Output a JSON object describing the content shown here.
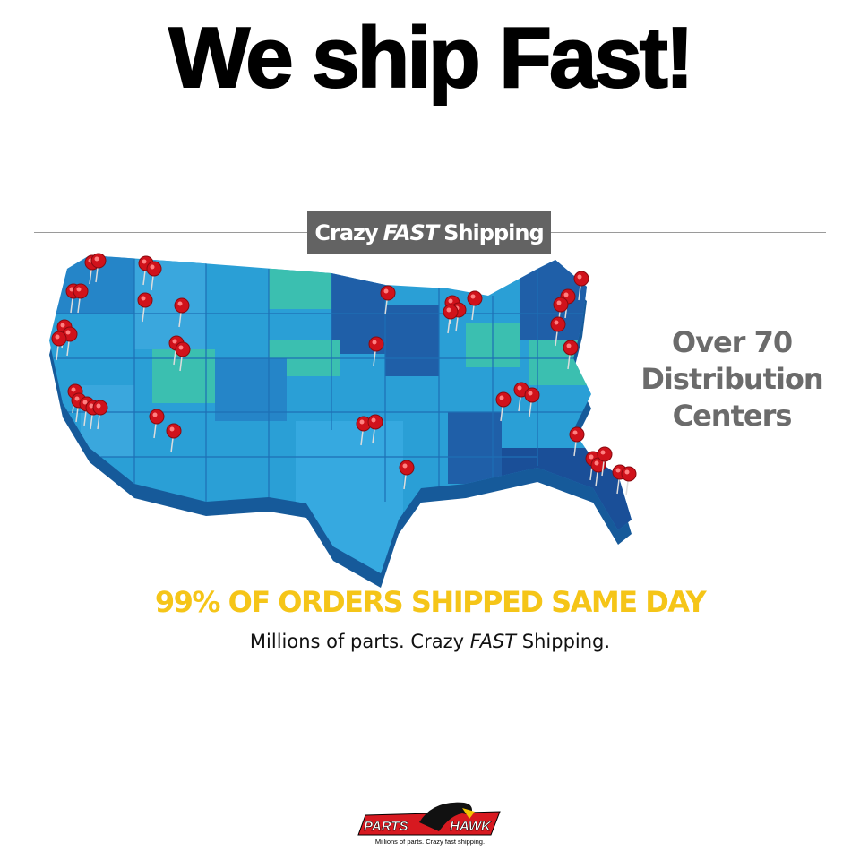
{
  "headline": "We ship Fast!",
  "banner": {
    "part1": "Crazy",
    "part2": "FAST",
    "part3": "Shipping"
  },
  "side_text": {
    "line1": "Over 70",
    "line2": "Distribution",
    "line3": "Centers"
  },
  "highlight": "99% OF ORDERS SHIPPED SAME DAY",
  "tagline": {
    "part1": "Millions of parts. Crazy",
    "part2": "FAST",
    "part3": "Shipping."
  },
  "logo": {
    "word1": "PARTS",
    "word2": "HAWK",
    "slogan": "Millions of parts. Crazy fast shipping."
  },
  "colors": {
    "map_blue": "#2a9fd6",
    "map_dark": "#1f5fa8",
    "map_teal": "#3bbfb0",
    "pin": "#d0121b",
    "highlight": "#f5c518",
    "banner_bg": "#636363",
    "logo_red": "#d71920"
  },
  "map_icon": "us-map-with-location-pins"
}
